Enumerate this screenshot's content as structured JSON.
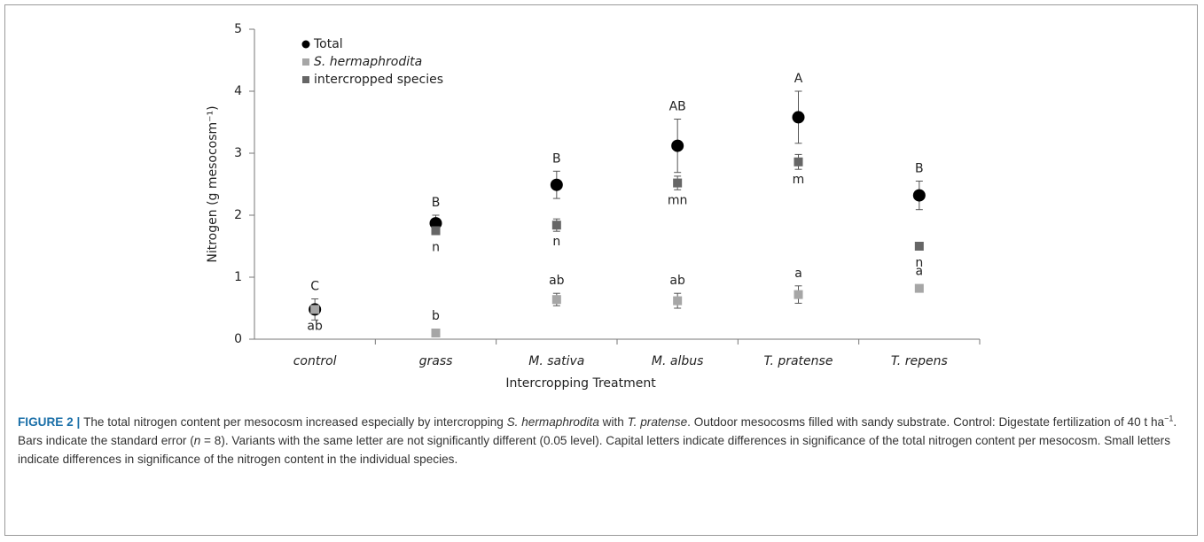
{
  "chart_data": {
    "type": "scatter",
    "ylabel": "Nitrogen (g mesocosm⁻¹)",
    "xlabel": "Intercropping Treatment",
    "categories": [
      "control",
      "grass",
      "M. sativa",
      "M. albus",
      "T. pratense",
      "T. repens"
    ],
    "ylim": [
      0,
      5
    ],
    "yticks": [
      0,
      1,
      2,
      3,
      4,
      5
    ],
    "legend": "top-left",
    "series": [
      {
        "name": "Total",
        "color": "#000000",
        "marker": "circle",
        "values": [
          0.48,
          1.87,
          2.49,
          3.12,
          3.58,
          2.32
        ],
        "errors": [
          0.17,
          0.13,
          0.22,
          0.43,
          0.42,
          0.23
        ],
        "letters": [
          "C",
          "B",
          "B",
          "AB",
          "A",
          "B"
        ]
      },
      {
        "name": "S. hermaphrodita",
        "color": "#a6a6a6",
        "marker": "square",
        "values": [
          0.48,
          0.1,
          0.64,
          0.62,
          0.72,
          0.82
        ],
        "errors": [
          null,
          null,
          0.1,
          0.12,
          0.14,
          0.05
        ],
        "letters": [
          "ab",
          "b",
          "ab",
          "ab",
          "a",
          "a"
        ]
      },
      {
        "name": "intercropped species",
        "color": "#666666",
        "marker": "square",
        "values": [
          null,
          1.75,
          1.84,
          2.52,
          2.86,
          1.5
        ],
        "errors": [
          null,
          null,
          0.1,
          0.11,
          0.12,
          0.03
        ],
        "letters": [
          null,
          "n",
          "n",
          "mn",
          "m",
          "n"
        ]
      }
    ]
  },
  "caption": [
    {
      "text": "FIGURE 2 | ",
      "style": "bold"
    },
    {
      "text": "The total nitrogen content per mesocosm increased especially by intercropping "
    },
    {
      "text": "S. hermaphrodita",
      "style": "italic"
    },
    {
      "text": " with "
    },
    {
      "text": "T. pratense",
      "style": "italic"
    },
    {
      "text": ". Outdoor mesocosms filled with sandy substrate. Control: Digestate fertilization of 40 t ha"
    },
    {
      "text": "−1",
      "style": "sup"
    },
    {
      "text": ". Bars indicate the standard error ("
    },
    {
      "text": "n",
      "style": "italic"
    },
    {
      "text": " = 8). Variants with the same letter are not significantly different (0.05 level). Capital letters indicate differences in significance of the total nitrogen content per mesocosm. Small letters indicate differences in significance of the nitrogen content in the individual species."
    }
  ]
}
